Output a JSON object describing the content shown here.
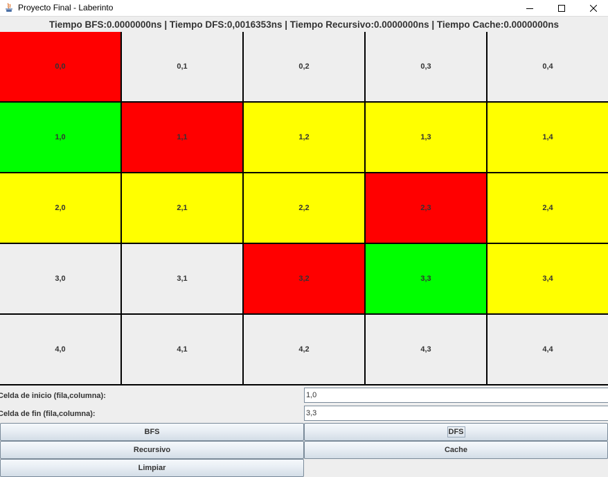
{
  "window": {
    "title": "Proyecto Final - Laberinto"
  },
  "timing": {
    "text": "Tiempo BFS:0.0000000ns |  Tiempo DFS:0,0016353ns | Tiempo Recursivo:0.0000000ns | Tiempo Cache:0.0000000ns"
  },
  "colors": {
    "wall": "#ff0000",
    "endpoint": "#00ff00",
    "path": "#ffff00",
    "empty": "#eeeeee"
  },
  "grid": {
    "rows": [
      [
        {
          "label": "0,0",
          "state": "wall"
        },
        {
          "label": "0,1",
          "state": "empty"
        },
        {
          "label": "0,2",
          "state": "empty"
        },
        {
          "label": "0,3",
          "state": "empty"
        },
        {
          "label": "0,4",
          "state": "empty"
        }
      ],
      [
        {
          "label": "1,0",
          "state": "endpoint"
        },
        {
          "label": "1,1",
          "state": "wall"
        },
        {
          "label": "1,2",
          "state": "path"
        },
        {
          "label": "1,3",
          "state": "path"
        },
        {
          "label": "1,4",
          "state": "path"
        }
      ],
      [
        {
          "label": "2,0",
          "state": "path"
        },
        {
          "label": "2,1",
          "state": "path"
        },
        {
          "label": "2,2",
          "state": "path"
        },
        {
          "label": "2,3",
          "state": "wall"
        },
        {
          "label": "2,4",
          "state": "path"
        }
      ],
      [
        {
          "label": "3,0",
          "state": "empty"
        },
        {
          "label": "3,1",
          "state": "empty"
        },
        {
          "label": "3,2",
          "state": "wall"
        },
        {
          "label": "3,3",
          "state": "endpoint"
        },
        {
          "label": "3,4",
          "state": "path"
        }
      ],
      [
        {
          "label": "4,0",
          "state": "empty"
        },
        {
          "label": "4,1",
          "state": "empty"
        },
        {
          "label": "4,2",
          "state": "empty"
        },
        {
          "label": "4,3",
          "state": "empty"
        },
        {
          "label": "4,4",
          "state": "empty"
        }
      ]
    ]
  },
  "form": {
    "start_label": "Celda de inicio (fila,columna):",
    "start_value": "1,0",
    "end_label": "Celda de fin (fila,columna):",
    "end_value": "3,3"
  },
  "buttons": {
    "bfs": "BFS",
    "dfs": "DFS",
    "recursivo": "Recursivo",
    "cache": "Cache",
    "limpiar": "Limpiar"
  }
}
